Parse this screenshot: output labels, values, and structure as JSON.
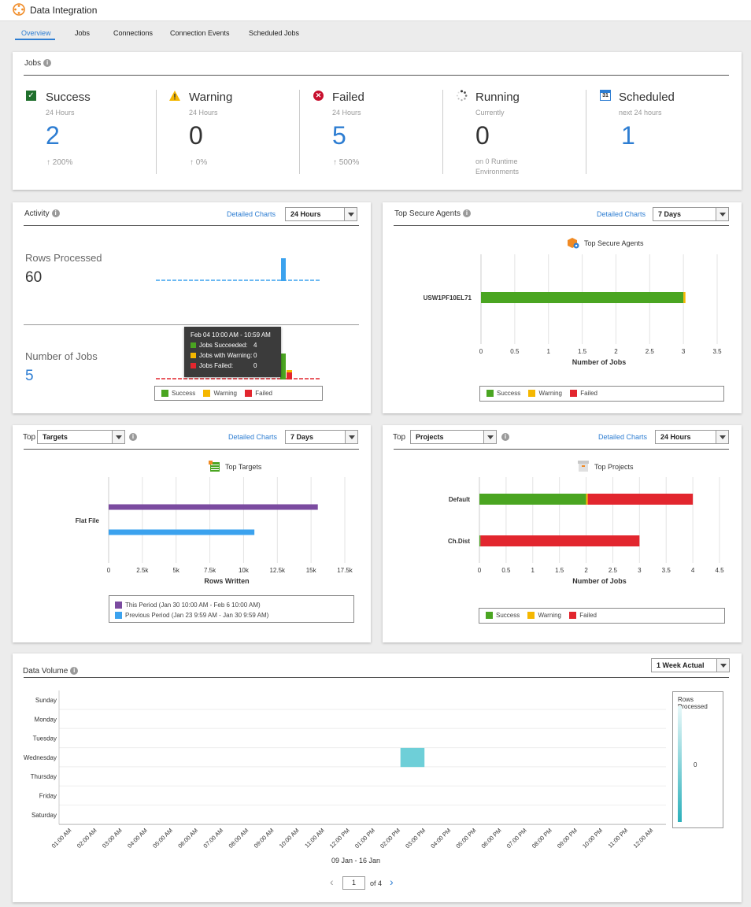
{
  "app": {
    "title": "Data Integration"
  },
  "tabs": [
    "Overview",
    "Jobs",
    "Connections",
    "Connection Events",
    "Scheduled Jobs"
  ],
  "colors": {
    "success": "#4aa521",
    "warning": "#f5b700",
    "failed": "#e2262e",
    "link": "#2d7dd2",
    "purple": "#7b4ba0",
    "blue": "#3ba2ee",
    "teal": "#6ecfd8"
  },
  "jobs": {
    "title": "Jobs",
    "kpis": [
      {
        "label": "Success",
        "sub": "24 Hours",
        "value": "2",
        "delta": "200%",
        "icon": "checkbox-icon"
      },
      {
        "label": "Warning",
        "sub": "24 Hours",
        "value": "0",
        "delta": "0%",
        "icon": "warning-icon"
      },
      {
        "label": "Failed",
        "sub": "24 Hours",
        "value": "5",
        "delta": "500%",
        "icon": "error-icon"
      },
      {
        "label": "Running",
        "sub": "Currently",
        "value": "0",
        "delta": "on 0 Runtime Environments",
        "icon": "spinner-icon"
      },
      {
        "label": "Scheduled",
        "sub": "next 24 hours",
        "value": "1",
        "delta": "",
        "icon": "calendar-icon"
      }
    ],
    "calendar_day": "31"
  },
  "activity": {
    "title": "Activity",
    "detail_link": "Detailed Charts",
    "range": "24 Hours",
    "rows_label": "Rows Processed",
    "rows_value": "60",
    "jobs_label": "Number of Jobs",
    "jobs_value": "5",
    "tooltip": {
      "title": "Feb 04 10:00 AM - 10:59 AM",
      "rows": [
        {
          "label": "Jobs Succeeded:",
          "value": "4"
        },
        {
          "label": "Jobs with Warning:",
          "value": "0"
        },
        {
          "label": "Jobs Failed:",
          "value": "0"
        }
      ]
    },
    "legend": [
      "Success",
      "Warning",
      "Failed"
    ]
  },
  "agents": {
    "title": "Top Secure Agents",
    "detail_link": "Detailed Charts",
    "range": "7 Days",
    "chart_title": "Top Secure Agents",
    "legend": [
      "Success",
      "Warning",
      "Failed"
    ]
  },
  "targets": {
    "top_label": "Top",
    "select": "Targets",
    "detail_link": "Detailed Charts",
    "range": "7 Days",
    "chart_title": "Top Targets",
    "legend": [
      "This Period (Jan 30 10:00 AM - Feb 6 10:00 AM)",
      "Previous Period (Jan 23 9:59 AM - Jan 30 9:59 AM)"
    ]
  },
  "projects": {
    "top_label": "Top",
    "select": "Projects",
    "detail_link": "Detailed Charts",
    "range": "24 Hours",
    "chart_title": "Top Projects",
    "legend": [
      "Success",
      "Warning",
      "Failed"
    ]
  },
  "volume": {
    "title": "Data Volume",
    "range": "1 Week Actual",
    "scale_label": "Rows Processed",
    "scale_value": "0",
    "period": "09 Jan - 16 Jan",
    "page": "1",
    "page_of": "of 4"
  },
  "chart_data": [
    {
      "type": "bar",
      "title": "Top Secure Agents",
      "orientation": "horizontal",
      "categories": [
        "USW1PF10EL71"
      ],
      "series": [
        {
          "name": "Success",
          "values": [
            3
          ]
        },
        {
          "name": "Warning",
          "values": [
            0.03
          ]
        },
        {
          "name": "Failed",
          "values": [
            0
          ]
        }
      ],
      "xlabel": "Number of Jobs",
      "xlim": [
        0,
        3.5
      ],
      "ticks": [
        "0",
        "0.5",
        "1",
        "1.5",
        "2",
        "2.5",
        "3",
        "3.5"
      ]
    },
    {
      "type": "bar",
      "title": "Top Targets",
      "orientation": "horizontal",
      "categories": [
        "Flat File"
      ],
      "series": [
        {
          "name": "This Period (Jan 30 10:00 AM - Feb 6 10:00 AM)",
          "values": [
            15500
          ]
        },
        {
          "name": "Previous Period (Jan 23 9:59 AM - Jan 30 9:59 AM)",
          "values": [
            10800
          ]
        }
      ],
      "xlabel": "Rows Written",
      "xlim": [
        0,
        17500
      ],
      "ticks": [
        "0",
        "2.5k",
        "5k",
        "7.5k",
        "10k",
        "12.5k",
        "15k",
        "17.5k"
      ]
    },
    {
      "type": "bar",
      "title": "Top Projects",
      "orientation": "horizontal",
      "stacked": true,
      "categories": [
        "Default",
        "Ch.Dist"
      ],
      "series": [
        {
          "name": "Success",
          "values": [
            2,
            0.02
          ]
        },
        {
          "name": "Warning",
          "values": [
            0.03,
            0
          ]
        },
        {
          "name": "Failed",
          "values": [
            1.97,
            2.98
          ]
        }
      ],
      "xlabel": "Number of Jobs",
      "xlim": [
        0,
        4.5
      ],
      "ticks": [
        "0",
        "0.5",
        "1",
        "1.5",
        "2",
        "2.5",
        "3",
        "3.5",
        "4",
        "4.5"
      ]
    },
    {
      "type": "heatmap",
      "title": "Data Volume",
      "y": [
        "Sunday",
        "Monday",
        "Tuesday",
        "Wednesday",
        "Thursday",
        "Friday",
        "Saturday"
      ],
      "x": [
        "01:00 AM",
        "02:00 AM",
        "03:00 AM",
        "04:00 AM",
        "05:00 AM",
        "06:00 AM",
        "07:00 AM",
        "08:00 AM",
        "09:00 AM",
        "10:00 AM",
        "11:00 AM",
        "12:00 PM",
        "01:00 PM",
        "02:00 PM",
        "03:00 PM",
        "04:00 PM",
        "05:00 PM",
        "06:00 PM",
        "07:00 PM",
        "08:00 PM",
        "09:00 PM",
        "10:00 PM",
        "11:00 PM",
        "12:00 AM"
      ],
      "cells": [
        {
          "day": "Wednesday",
          "hour": "02:00 PM",
          "value": 60
        }
      ]
    }
  ]
}
